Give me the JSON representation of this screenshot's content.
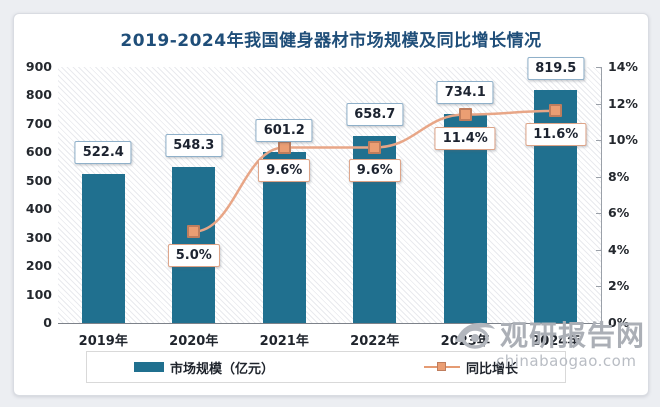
{
  "chart_data": {
    "type": "bar",
    "title": "2019-2024年我国健身器材市场规模及同比增长情况",
    "categories": [
      "2019年",
      "2020年",
      "2021年",
      "2022年",
      "2023年",
      "2024年"
    ],
    "series": [
      {
        "name": "市场规模（亿元）",
        "kind": "bar",
        "axis": "left",
        "values": [
          522.4,
          548.3,
          601.2,
          658.7,
          734.1,
          819.5
        ],
        "labels": [
          "522.4",
          "548.3",
          "601.2",
          "658.7",
          "734.1",
          "819.5"
        ],
        "color": "#20708f"
      },
      {
        "name": "同比增长",
        "kind": "line",
        "axis": "right",
        "values": [
          null,
          5.0,
          9.6,
          9.6,
          11.4,
          11.6
        ],
        "labels": [
          null,
          "5.0%",
          "9.6%",
          "9.6%",
          "11.4%",
          "11.6%"
        ],
        "color": "#e8a687",
        "marker_fill": "#eb9e73",
        "marker_border": "#bf7d5d"
      }
    ],
    "left_axis": {
      "min": 0,
      "max": 900,
      "ticks": [
        "900",
        "800",
        "700",
        "600",
        "500",
        "400",
        "300",
        "200",
        "100",
        "0"
      ]
    },
    "right_axis": {
      "min": 0,
      "max": 14,
      "ticks": [
        "14%",
        "12%",
        "10%",
        "8%",
        "6%",
        "4%",
        "2%",
        "0%"
      ]
    },
    "grid": false,
    "legend_position": "bottom"
  },
  "legend": {
    "items": [
      {
        "label": "市场规模（亿元）"
      },
      {
        "label": "同比增长"
      }
    ]
  },
  "watermark": {
    "site_name": "观研报告网",
    "domain": "chinabaogao.com"
  },
  "colors": {
    "bar": "#20708f",
    "line": "#e8a687",
    "marker_fill": "#eb9e73",
    "marker_border": "#bf7d5d",
    "title": "#1f4e79",
    "page_background": "#eceef2",
    "value_box_border": "#8fb0c9",
    "percent_box_border": "#dda488"
  }
}
